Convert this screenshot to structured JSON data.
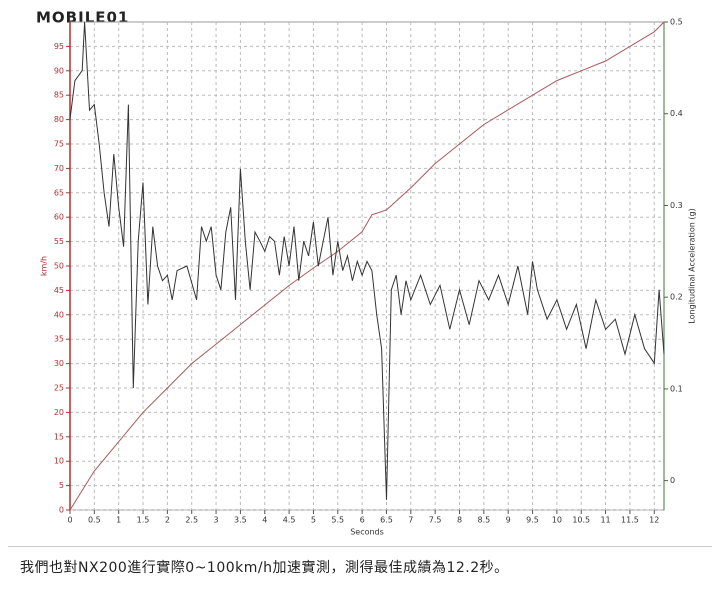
{
  "logo": "MOBILE01",
  "caption": "我們也對NX200進行實際0~100km/h加速實測，測得最佳成績為12.2秒。",
  "chart_data": {
    "type": "line",
    "xlabel": "Seconds",
    "ylabel": "km/h",
    "y2label": "Longitudinal Acceleration (g)",
    "xlim": [
      0,
      12.2
    ],
    "xticks": [
      0,
      0.5,
      1,
      1.5,
      2,
      2.5,
      3,
      3.5,
      4,
      4.5,
      5,
      5.5,
      6,
      6.5,
      7,
      7.5,
      8,
      8.5,
      9,
      9.5,
      10,
      10.5,
      11,
      11.5,
      12
    ],
    "ylim": [
      0,
      100
    ],
    "yticks": [
      0,
      5,
      10,
      15,
      20,
      25,
      30,
      35,
      40,
      45,
      50,
      55,
      60,
      65,
      70,
      75,
      80,
      85,
      90,
      95
    ],
    "y2lim": [
      -0.032,
      0.5
    ],
    "y2ticks": [
      0,
      0.1,
      0.2,
      0.3,
      0.4,
      0.5
    ],
    "grid": true,
    "series": [
      {
        "name": "km/h",
        "color": "#a85a5a",
        "axis": "y",
        "x": [
          0,
          0.5,
          1,
          1.5,
          2,
          2.5,
          3,
          3.5,
          4,
          4.5,
          5,
          5.5,
          6,
          6.2,
          6.5,
          7,
          7.5,
          8,
          8.5,
          9,
          9.5,
          10,
          10.5,
          11,
          11.5,
          12,
          12.2
        ],
        "values": [
          0,
          8,
          14,
          20,
          25,
          30,
          34,
          38,
          42,
          46,
          49.6,
          53,
          57,
          60.5,
          61.5,
          66,
          71,
          75,
          79,
          82,
          85,
          88,
          90,
          92,
          95,
          98,
          100
        ]
      },
      {
        "name": "Longitudinal Acceleration (g)",
        "color": "#333333",
        "axis": "y2",
        "x": [
          0,
          0.1,
          0.25,
          0.3,
          0.4,
          0.5,
          0.6,
          0.7,
          0.8,
          0.9,
          1.0,
          1.1,
          1.2,
          1.3,
          1.4,
          1.5,
          1.6,
          1.7,
          1.8,
          1.9,
          2.0,
          2.1,
          2.2,
          2.4,
          2.6,
          2.7,
          2.8,
          2.9,
          3.0,
          3.1,
          3.2,
          3.3,
          3.4,
          3.5,
          3.6,
          3.7,
          3.8,
          3.9,
          4.0,
          4.1,
          4.2,
          4.3,
          4.4,
          4.5,
          4.6,
          4.7,
          4.8,
          4.9,
          5.0,
          5.1,
          5.2,
          5.3,
          5.4,
          5.5,
          5.6,
          5.7,
          5.8,
          5.9,
          6.0,
          6.1,
          6.2,
          6.3,
          6.4,
          6.5,
          6.6,
          6.7,
          6.8,
          6.9,
          7.0,
          7.2,
          7.4,
          7.6,
          7.8,
          8.0,
          8.2,
          8.4,
          8.6,
          8.8,
          9.0,
          9.2,
          9.4,
          9.5,
          9.6,
          9.8,
          10.0,
          10.2,
          10.4,
          10.6,
          10.8,
          11.0,
          11.2,
          11.4,
          11.6,
          11.8,
          12.0,
          12.1,
          12.2
        ],
        "values": [
          0.394,
          0.436,
          0.447,
          0.5,
          0.404,
          0.41,
          0.367,
          0.314,
          0.277,
          0.356,
          0.298,
          0.255,
          0.41,
          0.101,
          0.261,
          0.325,
          0.192,
          0.277,
          0.234,
          0.218,
          0.224,
          0.197,
          0.229,
          0.234,
          0.197,
          0.277,
          0.261,
          0.277,
          0.224,
          0.208,
          0.271,
          0.298,
          0.197,
          0.34,
          0.261,
          0.208,
          0.271,
          0.261,
          0.25,
          0.266,
          0.261,
          0.224,
          0.266,
          0.234,
          0.277,
          0.218,
          0.261,
          0.245,
          0.282,
          0.234,
          0.261,
          0.287,
          0.224,
          0.261,
          0.229,
          0.245,
          0.218,
          0.239,
          0.224,
          0.239,
          0.229,
          0.181,
          0.144,
          -0.021,
          0.208,
          0.224,
          0.181,
          0.218,
          0.197,
          0.224,
          0.192,
          0.213,
          0.165,
          0.208,
          0.17,
          0.218,
          0.197,
          0.224,
          0.192,
          0.234,
          0.181,
          0.239,
          0.208,
          0.176,
          0.197,
          0.165,
          0.192,
          0.144,
          0.197,
          0.165,
          0.176,
          0.138,
          0.181,
          0.144,
          0.128,
          0.208,
          0.138
        ]
      }
    ]
  }
}
